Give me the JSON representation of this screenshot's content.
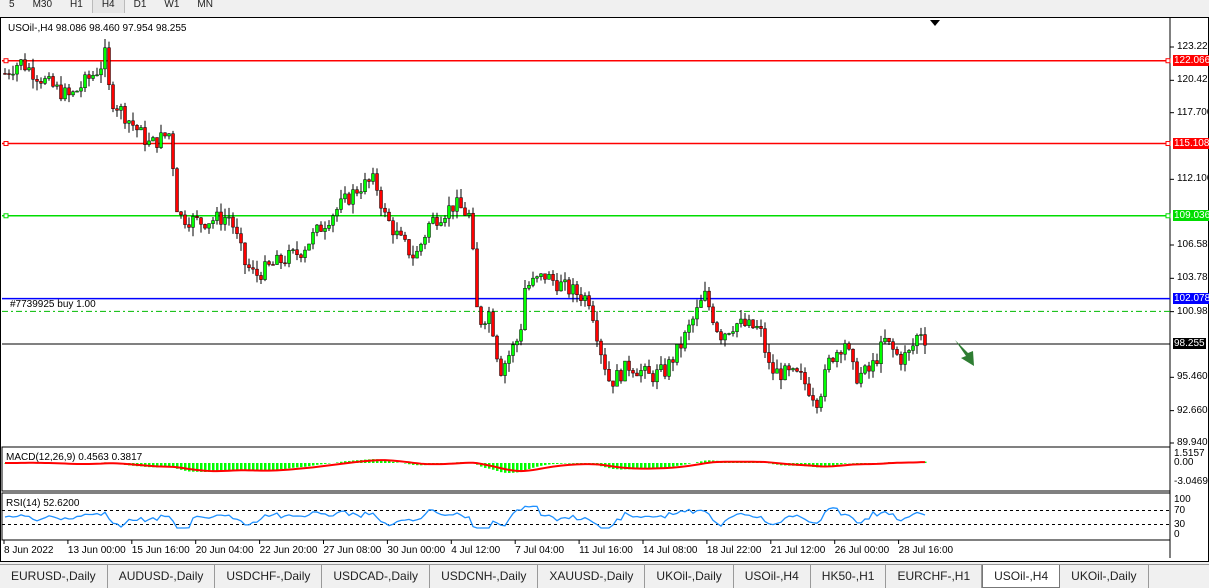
{
  "timeframes": [
    "5",
    "M30",
    "H1",
    "H4",
    "D1",
    "W1",
    "MN"
  ],
  "active_timeframe": "H4",
  "chart": {
    "title": "USOil-,H4  98.086 98.460 97.954 98.255",
    "order_label": "#7739925 buy 1.00"
  },
  "colors": {
    "bull": "#00ff00",
    "bear": "#ff0000",
    "level_red": "#ff0000",
    "level_green": "#00dd00",
    "order": "#0000ff",
    "rsi": "#1e90ff",
    "macd_hist": "#00ff00",
    "macd_signal": "#ff0000",
    "arrow": "#2e7d32"
  },
  "chart_data": {
    "type": "candlestick",
    "symbol": "USOil-",
    "timeframe": "H4",
    "ohlc": {
      "open": 98.086,
      "high": 98.46,
      "low": 97.954,
      "close": 98.255
    },
    "y_ticks": [
      "123.220",
      "120.420",
      "117.700",
      "112.100",
      "106.580",
      "103.780",
      "100.980",
      "95.460",
      "92.660",
      "89.940"
    ],
    "ylim": [
      89.94,
      123.22
    ],
    "levels": [
      {
        "label": "122.066",
        "price": 122.066,
        "color": "red"
      },
      {
        "label": "115.108",
        "price": 115.108,
        "color": "red"
      },
      {
        "label": "109.036",
        "price": 109.036,
        "color": "green"
      },
      {
        "label": "102.078",
        "price": 102.078,
        "color": "blue"
      },
      {
        "label": "98.255",
        "price": 98.255,
        "color": "black"
      }
    ],
    "x_ticks": [
      "8 Jun 2022",
      "13 Jun 00:00",
      "15 Jun 16:00",
      "20 Jun 04:00",
      "22 Jun 20:00",
      "27 Jun 08:00",
      "30 Jun 00:00",
      "4 Jul 12:00",
      "7 Jul 04:00",
      "11 Jul 16:00",
      "14 Jul 08:00",
      "18 Jul 22:00",
      "21 Jul 12:00",
      "26 Jul 00:00",
      "28 Jul 16:00"
    ],
    "macd": {
      "label": "MACD(12,26,9) 0.4563 0.3817",
      "ticks": [
        "1.5157",
        "0.00",
        "-3.0469"
      ]
    },
    "rsi": {
      "label": "RSI(14) 52.6200",
      "ticks": [
        "100",
        "70",
        "30",
        "0"
      ],
      "value": 52.62
    }
  },
  "tabs": [
    "EURUSD-,Daily",
    "AUDUSD-,Daily",
    "USDCHF-,Daily",
    "USDCAD-,Daily",
    "USDCNH-,Daily",
    "XAUUSD-,Daily",
    "UKOil-,Daily",
    "USOil-,H4",
    "HK50-,H1",
    "EURCHF-,H1",
    "USOil-,H4",
    "UKOil-,Daily"
  ],
  "active_tab": 10
}
